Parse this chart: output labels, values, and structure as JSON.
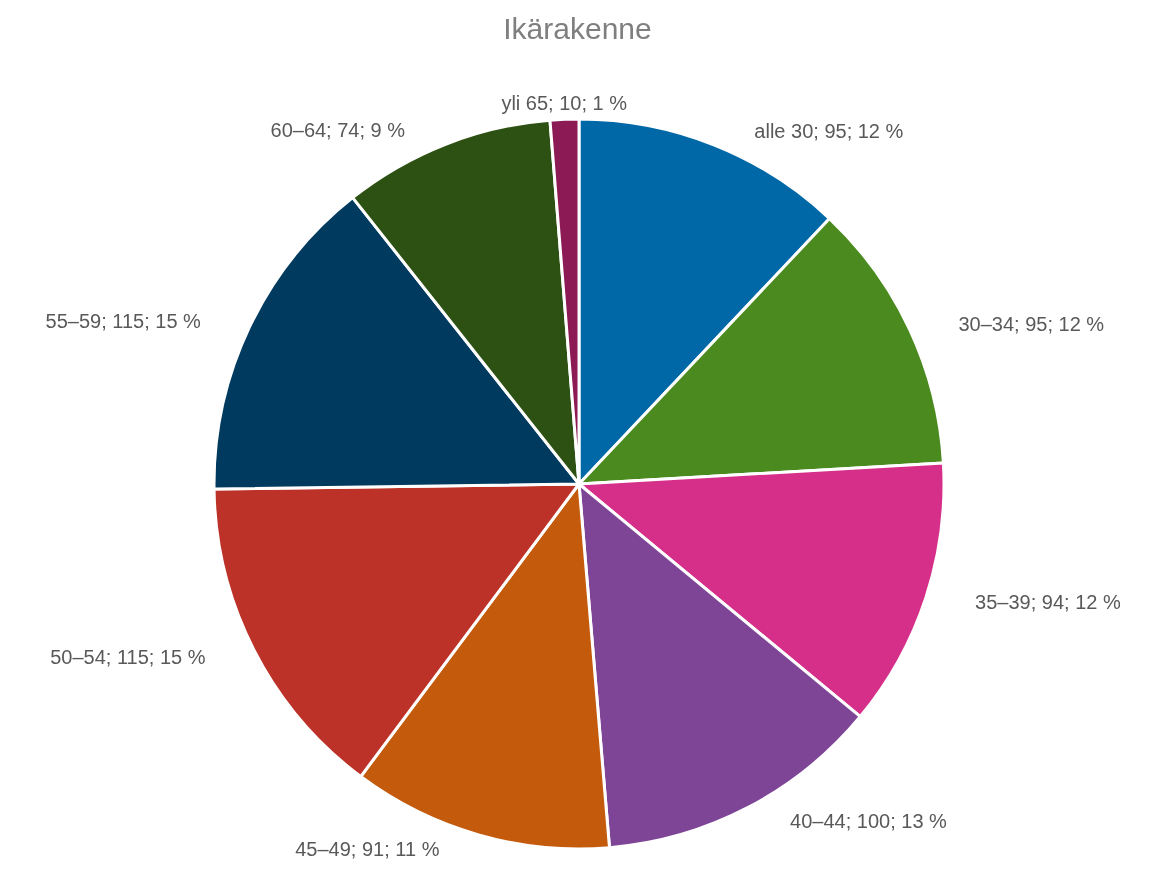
{
  "chart_data": {
    "type": "pie",
    "title": "Ikärakenne",
    "categories": [
      "alle 30",
      "30–34",
      "35–39",
      "40–44",
      "45–49",
      "50–54",
      "55–59",
      "60–64",
      "yli 65"
    ],
    "values": [
      95,
      95,
      94,
      100,
      91,
      115,
      115,
      74,
      10
    ],
    "colors": [
      "#0068a6",
      "#4a8a1e",
      "#d62f89",
      "#7e4597",
      "#c45a0b",
      "#bd3228",
      "#003a5f",
      "#2d5112",
      "#8c1a55"
    ],
    "value_labels": [
      "95; 12 %",
      "95; 12 %",
      "94; 12 %",
      "100; 13 %",
      "91; 11 %",
      "115; 15 %",
      "115; 15 %",
      "74; 9 %",
      "10; 1 %"
    ],
    "legend": false
  }
}
